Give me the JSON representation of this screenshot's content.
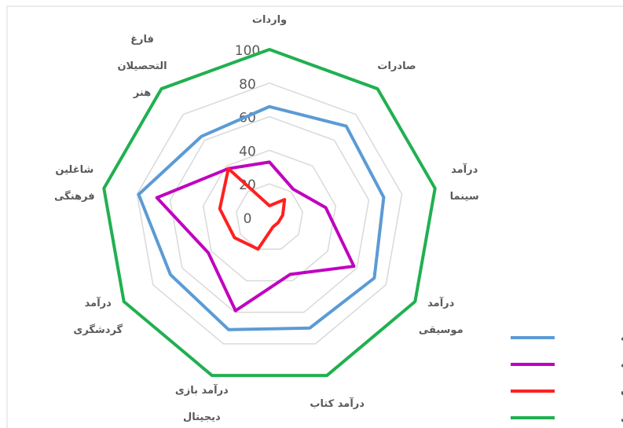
{
  "chart_data": {
    "type": "radar",
    "categories": [
      "واردات",
      "صادرات",
      "درآمد\nسینما",
      "درآمد\nموسیقی",
      "درآمد کتاب",
      "درآمد بازی\nدیجیتال",
      "درآمد\nگردشگری",
      "شاغلین\nفرهنگی",
      "فارغ\nالتحصیلان\nهنر"
    ],
    "series": [
      {
        "name": "نوسعه یافته",
        "color": "#5b9bd5",
        "values": [
          66,
          71,
          69,
          72,
          70,
          71,
          68,
          79,
          63
        ]
      },
      {
        "name": "رشدیافته",
        "color": "#c000c0",
        "values": [
          33,
          22,
          34,
          58,
          36,
          59,
          42,
          68,
          38
        ]
      },
      {
        "name": "ایران",
        "color": "#ff2020",
        "values": [
          7,
          14,
          8,
          6,
          6,
          20,
          24,
          30,
          38
        ]
      },
      {
        "name": "کامل",
        "color": "#20b050",
        "values": [
          100,
          100,
          100,
          100,
          100,
          100,
          100,
          100,
          100
        ]
      }
    ],
    "ylim": [
      0,
      100
    ],
    "yticks": [
      0,
      20,
      40,
      60,
      80,
      100
    ],
    "grid": true,
    "legend": "bottom-right"
  }
}
